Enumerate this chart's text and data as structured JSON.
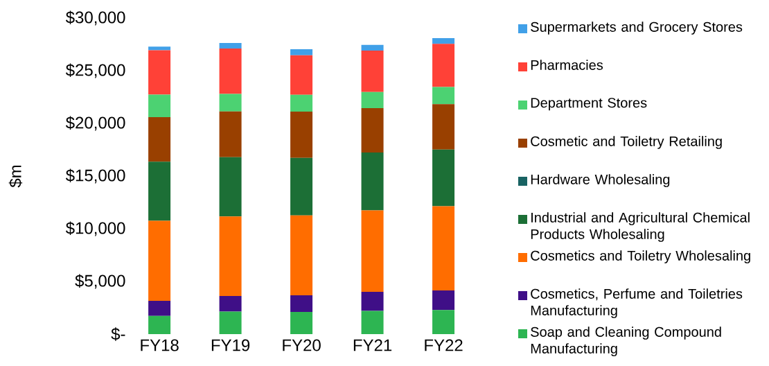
{
  "chart_data": {
    "type": "bar",
    "stacked": true,
    "ylabel": "$m",
    "categories": [
      "FY18",
      "FY19",
      "FY20",
      "FY21",
      "FY22"
    ],
    "series": [
      {
        "name": "Soap and Cleaning Compound Manufacturing",
        "color": "#2db552",
        "values": [
          1730,
          2130,
          2100,
          2210,
          2280
        ]
      },
      {
        "name": "Cosmetics, Perfume and Toiletries Manufacturing",
        "color": "#3f0f87",
        "values": [
          1430,
          1490,
          1580,
          1800,
          1860
        ]
      },
      {
        "name": "Cosmetics and Toiletry Wholesaling",
        "color": "#ff6d00",
        "values": [
          7600,
          7540,
          7580,
          7730,
          8000
        ]
      },
      {
        "name": "Industrial and Agricultural Chemical Products Wholesaling",
        "color": "#1c6f36",
        "values": [
          5610,
          5630,
          5460,
          5500,
          5370
        ]
      },
      {
        "name": "Hardware Wholesaling",
        "color": "#196363",
        "values": [
          0,
          0,
          0,
          0,
          0
        ]
      },
      {
        "name": "Cosmetic and Toiletry Retailing",
        "color": "#994000",
        "values": [
          4230,
          4340,
          4400,
          4210,
          4320
        ]
      },
      {
        "name": "Department Stores",
        "color": "#4cd272",
        "values": [
          2130,
          1670,
          1600,
          1530,
          1620
        ]
      },
      {
        "name": "Pharmacies",
        "color": "#ff4137",
        "values": [
          4210,
          4300,
          3750,
          3920,
          4100
        ]
      },
      {
        "name": "Supermarkets and Grocery Stores",
        "color": "#41a0e8",
        "values": [
          350,
          530,
          570,
          550,
          550
        ]
      }
    ],
    "ylim": [
      0,
      30000
    ],
    "yticks": [
      {
        "value": 0,
        "label": "$-"
      },
      {
        "value": 5000,
        "label": "$5,000"
      },
      {
        "value": 10000,
        "label": "$10,000"
      },
      {
        "value": 15000,
        "label": "$15,000"
      },
      {
        "value": 20000,
        "label": "$20,000"
      },
      {
        "value": 25000,
        "label": "$25,000"
      },
      {
        "value": 30000,
        "label": "$30,000"
      }
    ],
    "legend": "right"
  }
}
